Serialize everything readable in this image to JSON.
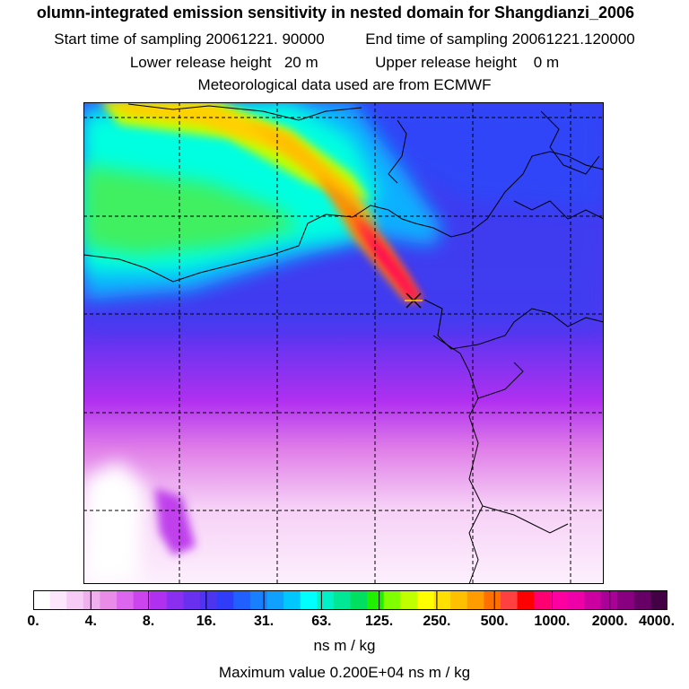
{
  "header": {
    "title": "olumn-integrated emission sensitivity in nested domain for Shangdianzi_2006",
    "start_label": "Start time of sampling 20061221. 90000",
    "end_label": "End time of sampling 20061221.120000",
    "lower_label": "Lower release height   20 m",
    "upper_label": "Upper release height    0 m",
    "met_label": "Meteorological data used are from ECMWF"
  },
  "colorbar": {
    "tick_labels": [
      "0.",
      "4.",
      "8.",
      "16.",
      "31.",
      "63.",
      "125.",
      "250.",
      "500.",
      "1000.",
      "2000.",
      "4000."
    ],
    "units": "ns m / kg",
    "colors": [
      "#ffffff",
      "#fbe6fb",
      "#f6ccf6",
      "#f0b0f0",
      "#e88ce8",
      "#dd66ee",
      "#cc44ee",
      "#b030f0",
      "#8a2ff0",
      "#6a30f0",
      "#4d35f0",
      "#2f3cf8",
      "#2060ff",
      "#1880ff",
      "#10a0ff",
      "#00c8ff",
      "#00ffff",
      "#00f0c8",
      "#00e896",
      "#00e060",
      "#20f000",
      "#80ff00",
      "#c0ff00",
      "#ffff00",
      "#ffe000",
      "#ffc000",
      "#ff9c00",
      "#ff7000",
      "#ff4040",
      "#ff0000",
      "#ff0070",
      "#ff00a0",
      "#ee00a8",
      "#cc00a0",
      "#aa0098",
      "#880080",
      "#660066",
      "#440044"
    ]
  },
  "footer": {
    "max_value": "Maximum value  0.200E+04 ns m / kg"
  },
  "map": {
    "station_marker": "station-cross-icon",
    "background_color": "#3c3cf0"
  }
}
